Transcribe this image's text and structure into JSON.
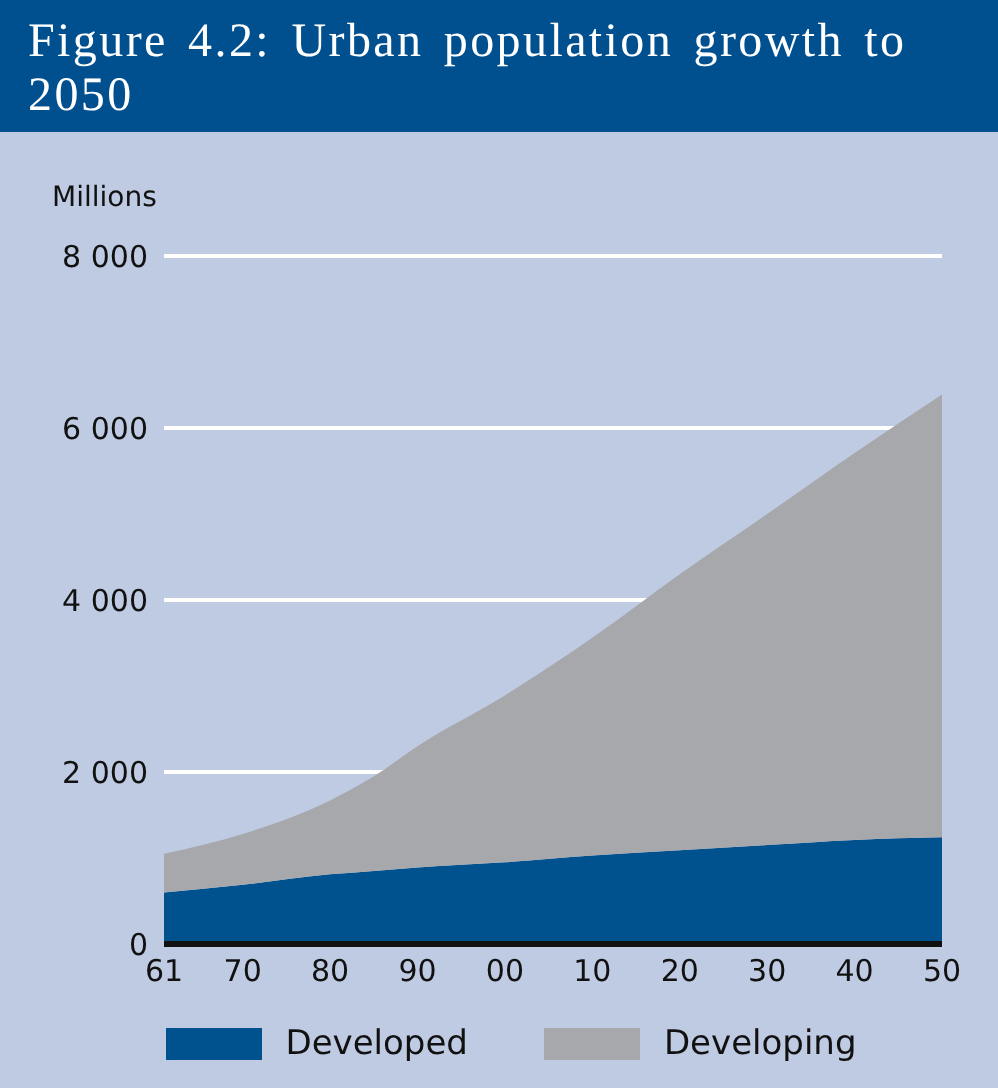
{
  "chart_data": {
    "type": "area",
    "title": "Figure 4.2: Urban population growth to 2050",
    "ylabel": "Millions",
    "stacked": true,
    "x": [
      1961,
      1970,
      1980,
      1985,
      1990,
      2000,
      2010,
      2020,
      2030,
      2040,
      2050
    ],
    "series": [
      {
        "name": "Developed",
        "color": "#00528f",
        "values": [
          600,
          690,
          810,
          850,
          890,
          950,
          1030,
          1090,
          1150,
          1210,
          1240
        ]
      },
      {
        "name": "Developing",
        "color": "#a7a8ab",
        "values": [
          450,
          590,
          860,
          1100,
          1410,
          1940,
          2530,
          3210,
          3850,
          4500,
          5150
        ]
      }
    ],
    "xlim": [
      1961,
      2050
    ],
    "xticks": [
      {
        "value": 1961,
        "label": "61"
      },
      {
        "value": 1970,
        "label": "70"
      },
      {
        "value": 1980,
        "label": "80"
      },
      {
        "value": 1990,
        "label": "90"
      },
      {
        "value": 2000,
        "label": "00"
      },
      {
        "value": 2010,
        "label": "10"
      },
      {
        "value": 2020,
        "label": "20"
      },
      {
        "value": 2030,
        "label": "30"
      },
      {
        "value": 2040,
        "label": "40"
      },
      {
        "value": 2050,
        "label": "50"
      }
    ],
    "ylim": [
      0,
      8000
    ],
    "yticks": [
      0,
      {
        "value": 2000,
        "label": "2 000"
      },
      {
        "value": 4000,
        "label": "4 000"
      },
      {
        "value": 6000,
        "label": "6 000"
      },
      {
        "value": 8000,
        "label": "8 000"
      }
    ],
    "grid": "y",
    "legend": "bottom"
  }
}
